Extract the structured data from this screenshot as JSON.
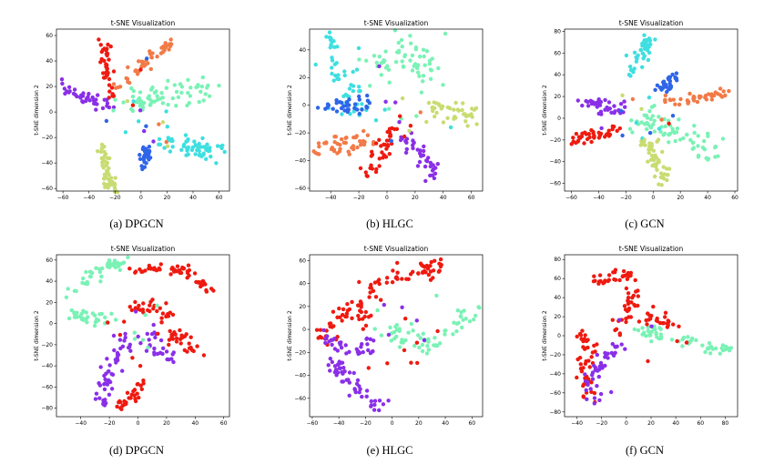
{
  "chart_data": [
    {
      "id": "a",
      "type": "scatter",
      "title": "t-SNE Visualization",
      "ylabel": "t-SNE dimension 2",
      "caption": "(a)  DPGCN",
      "xlim": [
        -65,
        68
      ],
      "ylim": [
        -62,
        65
      ],
      "xticks": [
        -60,
        -40,
        -20,
        0,
        20,
        40,
        60
      ],
      "yticks": [
        -60,
        -40,
        -20,
        0,
        20,
        40,
        60
      ],
      "clusters": [
        {
          "color": "#ee1a10",
          "path": [
            [
              -28,
              56
            ],
            [
              -27,
              40
            ],
            [
              -26,
              25
            ],
            [
              -22,
              10
            ]
          ],
          "spread": 2.5,
          "n": 40
        },
        {
          "color": "#f27a47",
          "path": [
            [
              -18,
              20
            ],
            [
              -5,
              32
            ],
            [
              10,
              45
            ],
            [
              25,
              55
            ]
          ],
          "spread": 2.2,
          "n": 45
        },
        {
          "color": "#8a2fe8",
          "path": [
            [
              -60,
              20
            ],
            [
              -50,
              14
            ],
            [
              -40,
              10
            ],
            [
              -25,
              5
            ]
          ],
          "spread": 3,
          "n": 40
        },
        {
          "color": "#7af2b5",
          "path": [
            [
              -10,
              5
            ],
            [
              10,
              10
            ],
            [
              30,
              15
            ],
            [
              55,
              20
            ]
          ],
          "spread": 5,
          "n": 70
        },
        {
          "color": "#c8dc72",
          "path": [
            [
              -28,
              -25
            ],
            [
              -27,
              -38
            ],
            [
              -26,
              -50
            ],
            [
              -25,
              -58
            ]
          ],
          "spread": 3,
          "n": 50
        },
        {
          "color": "#2f65e8",
          "path": [
            [
              5,
              -25
            ],
            [
              4,
              -35
            ],
            [
              3,
              -43
            ]
          ],
          "spread": 2.5,
          "n": 30
        },
        {
          "color": "#3edfe0",
          "path": [
            [
              15,
              -25
            ],
            [
              30,
              -27
            ],
            [
              45,
              -30
            ],
            [
              60,
              -33
            ]
          ],
          "spread": 4,
          "n": 60
        }
      ]
    },
    {
      "id": "b",
      "type": "scatter",
      "title": "t-SNE Visualization",
      "ylabel": "t-SNE dimension 2",
      "caption": "(b)  HLGC",
      "xlim": [
        -55,
        68
      ],
      "ylim": [
        -62,
        55
      ],
      "xticks": [
        -40,
        -20,
        0,
        20,
        40,
        60
      ],
      "yticks": [
        -60,
        -40,
        -20,
        0,
        20,
        40
      ],
      "clusters": [
        {
          "color": "#3edfe0",
          "path": [
            [
              -40,
              50
            ],
            [
              -35,
              30
            ],
            [
              -25,
              10
            ],
            [
              -20,
              -5
            ]
          ],
          "spread": 6,
          "n": 55
        },
        {
          "color": "#7af2b5",
          "path": [
            [
              -10,
              30
            ],
            [
              5,
              35
            ],
            [
              20,
              40
            ],
            [
              25,
              20
            ]
          ],
          "spread": 7,
          "n": 60
        },
        {
          "color": "#2f65e8",
          "path": [
            [
              -45,
              0
            ],
            [
              -35,
              0
            ],
            [
              -25,
              -2
            ],
            [
              -15,
              2
            ]
          ],
          "spread": 3,
          "n": 35
        },
        {
          "color": "#c8dc72",
          "path": [
            [
              30,
              0
            ],
            [
              40,
              -5
            ],
            [
              55,
              -8
            ],
            [
              60,
              -10
            ]
          ],
          "spread": 4,
          "n": 40
        },
        {
          "color": "#f27a47",
          "path": [
            [
              -55,
              -35
            ],
            [
              -40,
              -30
            ],
            [
              -25,
              -28
            ],
            [
              -10,
              -25
            ]
          ],
          "spread": 3,
          "n": 45
        },
        {
          "color": "#ee1a10",
          "path": [
            [
              -15,
              -50
            ],
            [
              -10,
              -40
            ],
            [
              0,
              -30
            ],
            [
              5,
              -20
            ]
          ],
          "spread": 3,
          "n": 40
        },
        {
          "color": "#8a2fe8",
          "path": [
            [
              10,
              -20
            ],
            [
              20,
              -30
            ],
            [
              30,
              -42
            ],
            [
              35,
              -50
            ]
          ],
          "spread": 3,
          "n": 40
        }
      ]
    },
    {
      "id": "c",
      "type": "scatter",
      "title": "t-SNE Visualization",
      "ylabel": "t-SNE dimension 2",
      "caption": "(c)  GCN",
      "xlim": [
        -65,
        62
      ],
      "ylim": [
        -67,
        82
      ],
      "xticks": [
        -60,
        -40,
        -20,
        0,
        20,
        40,
        60
      ],
      "yticks": [
        -60,
        -40,
        -20,
        0,
        20,
        40,
        60,
        80
      ],
      "clusters": [
        {
          "color": "#3edfe0",
          "path": [
            [
              -15,
              40
            ],
            [
              -10,
              55
            ],
            [
              -5,
              68
            ],
            [
              0,
              75
            ]
          ],
          "spread": 3,
          "n": 45
        },
        {
          "color": "#2f65e8",
          "path": [
            [
              5,
              25
            ],
            [
              12,
              35
            ],
            [
              20,
              42
            ]
          ],
          "spread": 2.5,
          "n": 30
        },
        {
          "color": "#f27a47",
          "path": [
            [
              10,
              15
            ],
            [
              25,
              18
            ],
            [
              40,
              20
            ],
            [
              55,
              23
            ]
          ],
          "spread": 2.5,
          "n": 40
        },
        {
          "color": "#8a2fe8",
          "path": [
            [
              -50,
              15
            ],
            [
              -40,
              12
            ],
            [
              -30,
              10
            ],
            [
              -20,
              8
            ]
          ],
          "spread": 3,
          "n": 40
        },
        {
          "color": "#7af2b5",
          "path": [
            [
              -10,
              0
            ],
            [
              10,
              -8
            ],
            [
              30,
              -20
            ],
            [
              50,
              -33
            ]
          ],
          "spread": 6,
          "n": 70
        },
        {
          "color": "#ee1a10",
          "path": [
            [
              -60,
              -20
            ],
            [
              -50,
              -18
            ],
            [
              -40,
              -15
            ],
            [
              -25,
              -10
            ]
          ],
          "spread": 2.5,
          "n": 40
        },
        {
          "color": "#c8dc72",
          "path": [
            [
              -5,
              -20
            ],
            [
              0,
              -35
            ],
            [
              5,
              -48
            ],
            [
              10,
              -62
            ]
          ],
          "spread": 3.5,
          "n": 50
        }
      ]
    },
    {
      "id": "d",
      "type": "scatter",
      "title": "t-SNE Visualization",
      "ylabel": "t-SNE dimension 2",
      "caption": "(d)  DPGCN",
      "xlim": [
        -57,
        64
      ],
      "ylim": [
        -88,
        65
      ],
      "xticks": [
        -40,
        -20,
        0,
        20,
        40,
        60
      ],
      "yticks": [
        -80,
        -60,
        -40,
        -20,
        0,
        20,
        40,
        60
      ],
      "clusters": [
        {
          "color": "#7af2b5",
          "path": [
            [
              -50,
              25
            ],
            [
              -35,
              45
            ],
            [
              -20,
              55
            ],
            [
              -10,
              58
            ]
          ],
          "spread": 3,
          "n": 45
        },
        {
          "color": "#7af2b5",
          "path": [
            [
              -45,
              10
            ],
            [
              -35,
              5
            ],
            [
              -25,
              3
            ],
            [
              -10,
              8
            ]
          ],
          "spread": 3,
          "n": 35
        },
        {
          "color": "#ee1a10",
          "path": [
            [
              -5,
              48
            ],
            [
              15,
              52
            ],
            [
              35,
              50
            ],
            [
              55,
              30
            ]
          ],
          "spread": 3,
          "n": 55
        },
        {
          "color": "#ee1a10",
          "path": [
            [
              -10,
              10
            ],
            [
              5,
              15
            ],
            [
              20,
              10
            ],
            [
              30,
              -15
            ],
            [
              40,
              -25
            ]
          ],
          "spread": 4,
          "n": 60
        },
        {
          "color": "#8a2fe8",
          "path": [
            [
              -5,
              -10
            ],
            [
              -15,
              -30
            ],
            [
              -20,
              -50
            ],
            [
              -25,
              -75
            ]
          ],
          "spread": 3.5,
          "n": 50
        },
        {
          "color": "#ee1a10",
          "path": [
            [
              -20,
              -80
            ],
            [
              -5,
              -70
            ],
            [
              5,
              -55
            ]
          ],
          "spread": 3,
          "n": 30
        },
        {
          "color": "#8a2fe8",
          "path": [
            [
              5,
              -10
            ],
            [
              15,
              -25
            ],
            [
              25,
              -35
            ]
          ],
          "spread": 3,
          "n": 25
        }
      ]
    },
    {
      "id": "e",
      "type": "scatter",
      "title": "t-SNE Visualization",
      "ylabel": "t-SNE dimension 2",
      "caption": "(e)  HLGC",
      "xlim": [
        -62,
        68
      ],
      "ylim": [
        -76,
        65
      ],
      "xticks": [
        -60,
        -40,
        -20,
        0,
        20,
        40,
        60
      ],
      "yticks": [
        -60,
        -40,
        -20,
        0,
        20,
        40,
        60
      ],
      "clusters": [
        {
          "color": "#ee1a10",
          "path": [
            [
              -35,
              20
            ],
            [
              -15,
              35
            ],
            [
              5,
              45
            ],
            [
              25,
              52
            ],
            [
              40,
              55
            ]
          ],
          "spread": 4,
          "n": 65
        },
        {
          "color": "#ee1a10",
          "path": [
            [
              -55,
              -10
            ],
            [
              -45,
              5
            ],
            [
              -30,
              15
            ],
            [
              -15,
              12
            ]
          ],
          "spread": 3.5,
          "n": 40
        },
        {
          "color": "#8a2fe8",
          "path": [
            [
              -45,
              -30
            ],
            [
              -35,
              -40
            ],
            [
              -25,
              -55
            ],
            [
              -5,
              -70
            ]
          ],
          "spread": 3.5,
          "n": 50
        },
        {
          "color": "#8a2fe8",
          "path": [
            [
              -50,
              -5
            ],
            [
              -40,
              -15
            ],
            [
              -20,
              -20
            ],
            [
              -15,
              -5
            ]
          ],
          "spread": 3,
          "n": 35
        },
        {
          "color": "#7af2b5",
          "path": [
            [
              -10,
              0
            ],
            [
              10,
              -5
            ],
            [
              30,
              -15
            ],
            [
              50,
              5
            ],
            [
              65,
              18
            ]
          ],
          "spread": 4,
          "n": 60
        }
      ]
    },
    {
      "id": "f",
      "type": "scatter",
      "title": "t-SNE Visualization",
      "ylabel": "t-SNE dimension 2",
      "caption": "(f)  GCN",
      "xlim": [
        -50,
        90
      ],
      "ylim": [
        -85,
        85
      ],
      "xticks": [
        -40,
        -20,
        0,
        20,
        40,
        60,
        80
      ],
      "yticks": [
        -80,
        -60,
        -40,
        -20,
        0,
        20,
        40,
        60,
        80
      ],
      "clusters": [
        {
          "color": "#ee1a10",
          "path": [
            [
              -30,
              55
            ],
            [
              -15,
              60
            ],
            [
              0,
              70
            ],
            [
              5,
              40
            ],
            [
              -5,
              10
            ]
          ],
          "spread": 4,
          "n": 60
        },
        {
          "color": "#ee1a10",
          "path": [
            [
              -35,
              0
            ],
            [
              -30,
              -20
            ],
            [
              -35,
              -40
            ],
            [
              -30,
              -65
            ]
          ],
          "spread": 3.5,
          "n": 45
        },
        {
          "color": "#8a2fe8",
          "path": [
            [
              -10,
              -10
            ],
            [
              -20,
              -30
            ],
            [
              -30,
              -45
            ],
            [
              -25,
              -70
            ]
          ],
          "spread": 3.5,
          "n": 45
        },
        {
          "color": "#7af2b5",
          "path": [
            [
              10,
              5
            ],
            [
              30,
              0
            ],
            [
              50,
              -5
            ],
            [
              65,
              -12
            ],
            [
              85,
              -15
            ]
          ],
          "spread": 3.5,
          "n": 55
        },
        {
          "color": "#ee1a10",
          "path": [
            [
              15,
              20
            ],
            [
              30,
              15
            ],
            [
              40,
              10
            ]
          ],
          "spread": 2.5,
          "n": 20
        }
      ]
    }
  ]
}
